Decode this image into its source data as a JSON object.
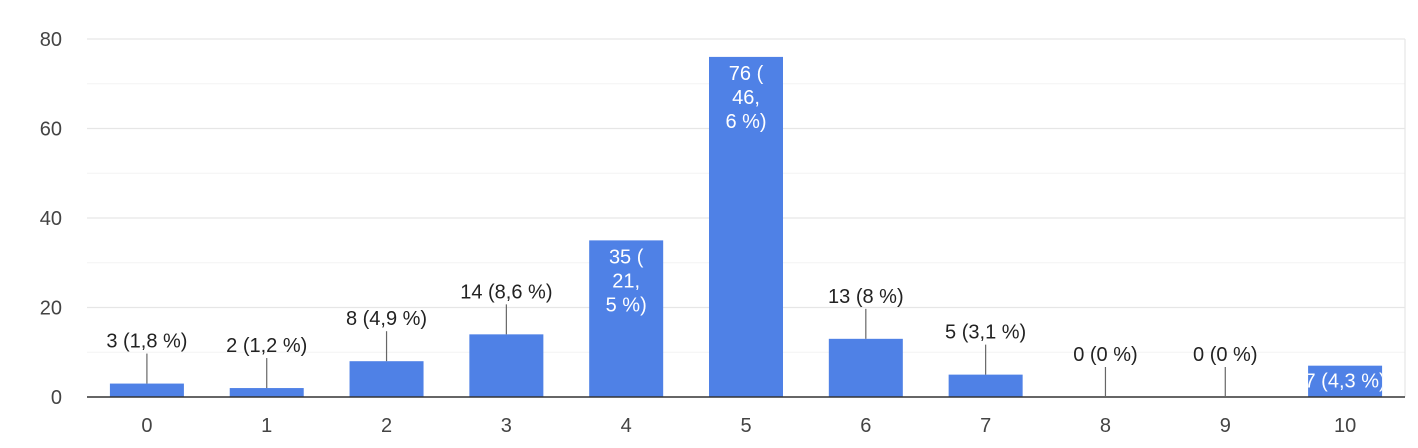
{
  "chart_data": {
    "type": "bar",
    "categories": [
      "0",
      "1",
      "2",
      "3",
      "4",
      "5",
      "6",
      "7",
      "8",
      "9",
      "10"
    ],
    "values": [
      3,
      2,
      8,
      14,
      35,
      76,
      13,
      5,
      0,
      0,
      7
    ],
    "data_labels": [
      "3 (1,8 %)",
      "2 (1,2 %)",
      "8 (4,9 %)",
      "14 (8,6 %)",
      "35 (21,5 %)",
      "76 (46,6 %)",
      "13 (8 %)",
      "5 (3,1 %)",
      "0 (0 %)",
      "0 (0 %)",
      "7 (4,3 %)"
    ],
    "y_ticks": [
      0,
      20,
      40,
      60,
      80
    ],
    "ylim": [
      0,
      80
    ],
    "grid": true,
    "title": "",
    "xlabel": "",
    "ylabel": "",
    "bar_color": "#4f81e6"
  }
}
